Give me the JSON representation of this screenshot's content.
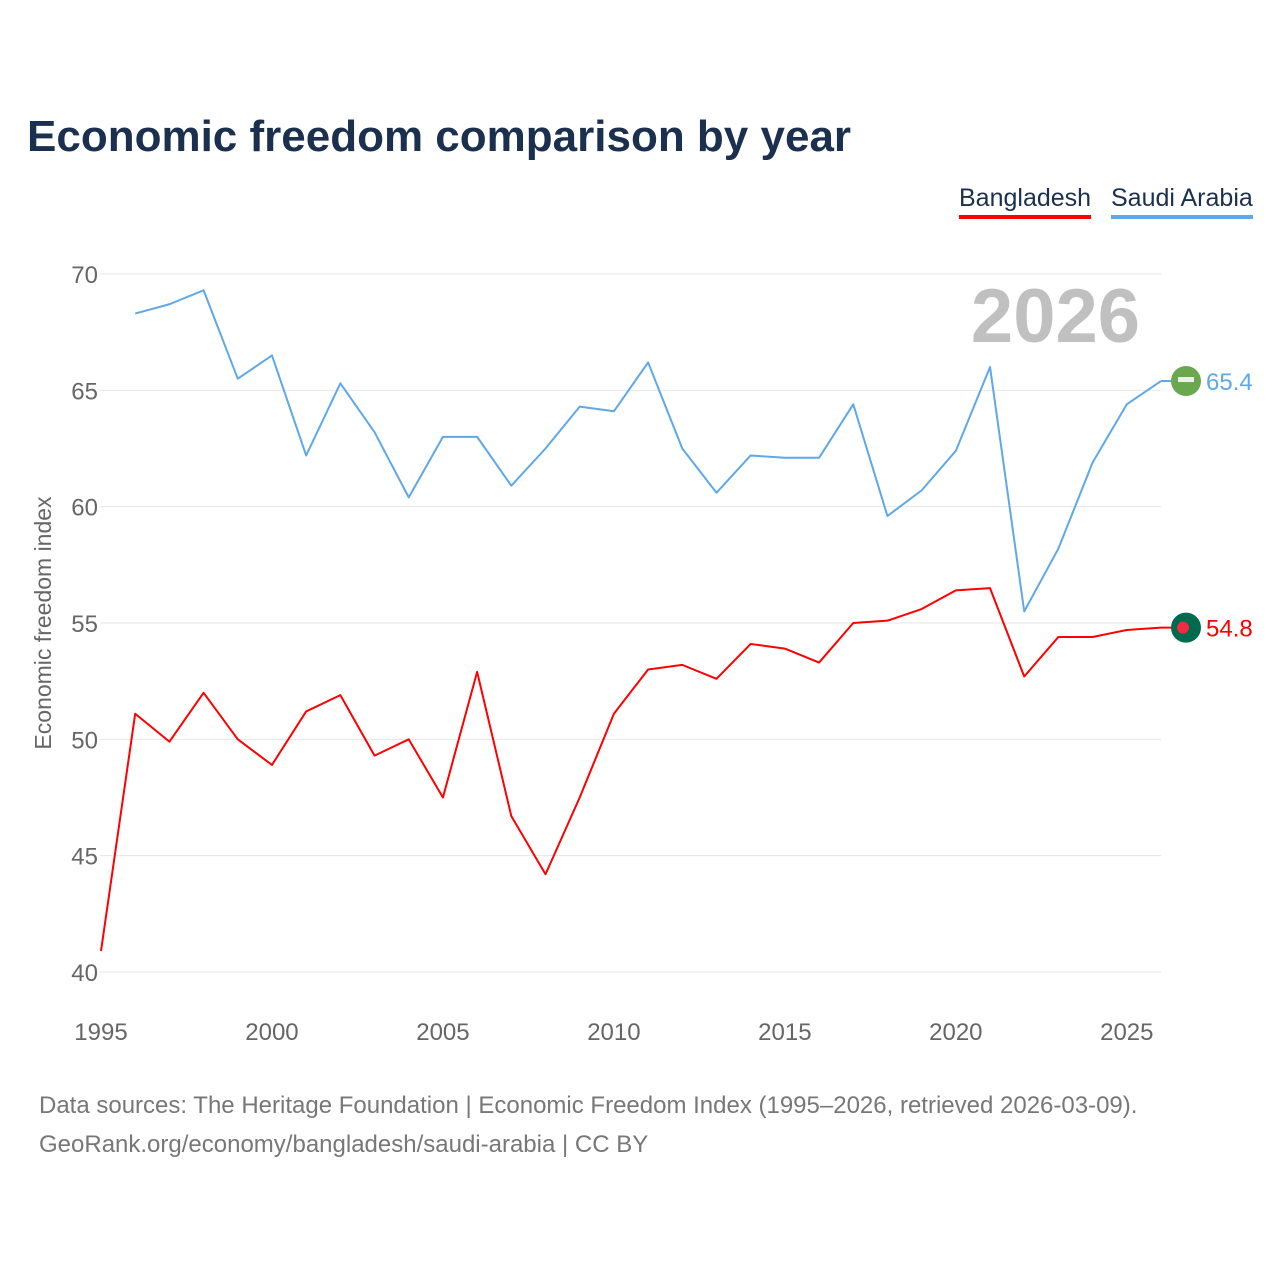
{
  "chart_data": {
    "type": "line",
    "title": "Economic freedom comparison by year",
    "ylabel": "Economic freedom index",
    "xlabel": "",
    "xlim": [
      1995,
      2026
    ],
    "ylim": [
      40,
      70
    ],
    "x_ticks": [
      "1995",
      "2000",
      "2005",
      "2010",
      "2015",
      "2020",
      "2025"
    ],
    "y_ticks": [
      "40",
      "45",
      "50",
      "55",
      "60",
      "65",
      "70"
    ],
    "watermark_year": "2026",
    "grid": true,
    "legend_position": "top-right",
    "series": [
      {
        "name": "Bangladesh",
        "color": "#ff0000",
        "end_label": "54.8",
        "x": [
          1995,
          1996,
          1997,
          1998,
          1999,
          2000,
          2001,
          2002,
          2003,
          2004,
          2005,
          2006,
          2007,
          2008,
          2009,
          2010,
          2011,
          2012,
          2013,
          2014,
          2015,
          2016,
          2017,
          2018,
          2019,
          2020,
          2021,
          2022,
          2023,
          2024,
          2025,
          2026
        ],
        "values": [
          40.9,
          51.1,
          49.9,
          52.0,
          50.0,
          48.9,
          51.2,
          51.9,
          49.3,
          50.0,
          47.5,
          52.9,
          46.7,
          44.2,
          47.5,
          51.1,
          53.0,
          53.2,
          52.6,
          54.1,
          53.9,
          53.3,
          55.0,
          55.1,
          55.6,
          56.4,
          56.5,
          52.7,
          54.4,
          54.4,
          54.7,
          54.8
        ]
      },
      {
        "name": "Saudi Arabia",
        "color": "#5fa8e8",
        "end_label": "65.4",
        "x": [
          1996,
          1997,
          1998,
          1999,
          2000,
          2001,
          2002,
          2003,
          2004,
          2005,
          2006,
          2007,
          2008,
          2009,
          2010,
          2011,
          2012,
          2013,
          2014,
          2015,
          2016,
          2017,
          2018,
          2019,
          2020,
          2021,
          2022,
          2023,
          2024,
          2025,
          2026
        ],
        "values": [
          68.3,
          68.7,
          69.3,
          65.5,
          66.5,
          62.2,
          65.3,
          63.2,
          60.4,
          63.0,
          63.0,
          60.9,
          62.5,
          64.3,
          64.1,
          66.2,
          62.5,
          60.6,
          62.2,
          62.1,
          62.1,
          64.4,
          59.6,
          60.7,
          62.4,
          66.0,
          55.5,
          58.2,
          61.9,
          64.4,
          65.4
        ]
      }
    ]
  },
  "footer": {
    "line1": "Data sources: The Heritage Foundation | Economic Freedom Index (1995–2026, retrieved 2026-03-09).",
    "line2": "GeoRank.org/economy/bangladesh/saudi-arabia | CC BY"
  }
}
